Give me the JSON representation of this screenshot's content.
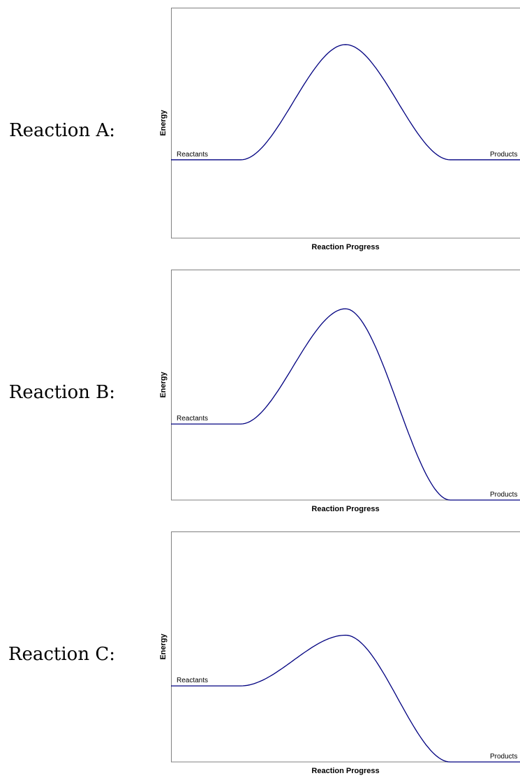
{
  "chart_data": [
    {
      "type": "line",
      "label": "Reaction A:",
      "xlabel": "Reaction Progress",
      "ylabel": "Energy",
      "ylim": [
        0,
        1
      ],
      "reactants": {
        "text": "Reactants",
        "energy": 0.34
      },
      "peak": {
        "energy": 0.84,
        "position": 0.5
      },
      "products": {
        "text": "Products",
        "energy": 0.34
      }
    },
    {
      "type": "line",
      "label": "Reaction B:",
      "xlabel": "Reaction Progress",
      "ylabel": "Energy",
      "ylim": [
        0,
        1
      ],
      "reactants": {
        "text": "Reactants",
        "energy": 0.33
      },
      "peak": {
        "energy": 0.83,
        "position": 0.5
      },
      "products": {
        "text": "Products",
        "energy": 0.0
      }
    },
    {
      "type": "line",
      "label": "Reaction C:",
      "xlabel": "Reaction Progress",
      "ylabel": "Energy",
      "ylim": [
        0,
        1
      ],
      "reactants": {
        "text": "Reactants",
        "energy": 0.33
      },
      "peak": {
        "energy": 0.55,
        "position": 0.5
      },
      "products": {
        "text": "Products",
        "energy": 0.0
      }
    }
  ]
}
